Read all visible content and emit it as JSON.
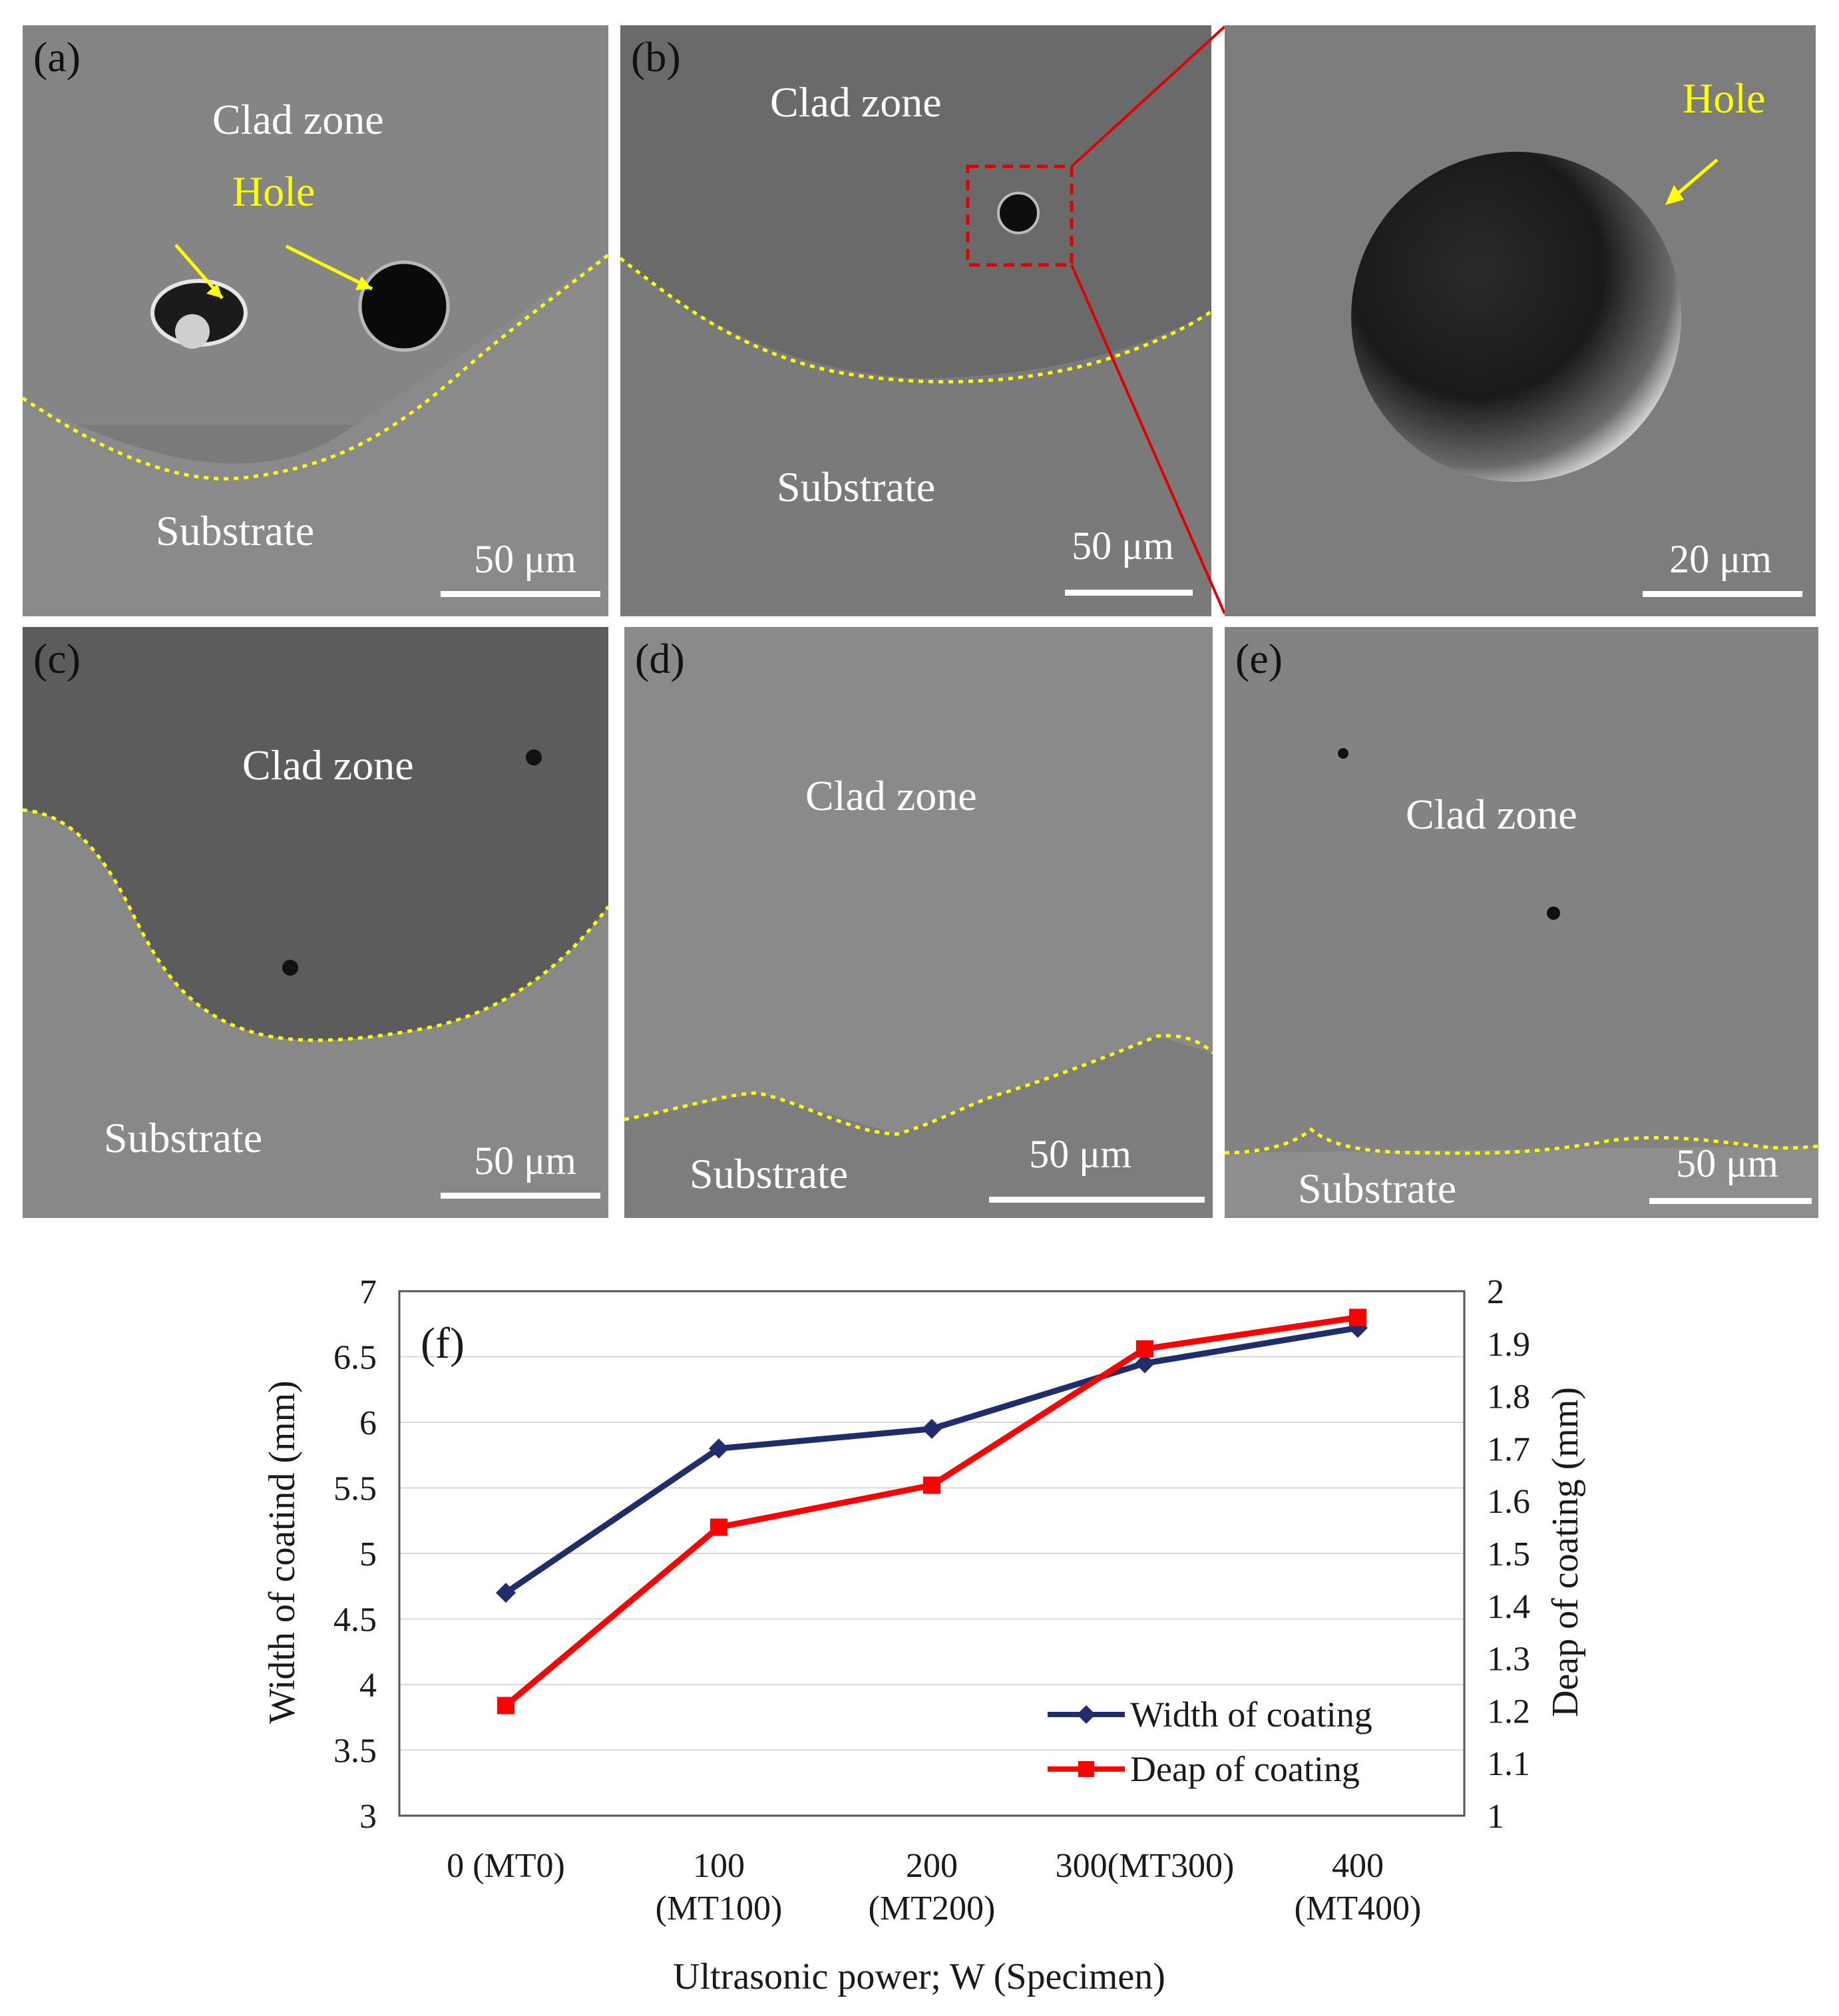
{
  "panels": {
    "a": {
      "label": "(a)",
      "clad": "Clad zone",
      "hole": "Hole",
      "substrate": "Substrate",
      "scale": "50 μm"
    },
    "b": {
      "label": "(b)",
      "clad": "Clad zone",
      "substrate": "Substrate",
      "scale": "50 μm"
    },
    "b_zoom": {
      "hole": "Hole",
      "scale": "20 μm"
    },
    "c": {
      "label": "(c)",
      "clad": "Clad zone",
      "substrate": "Substrate",
      "scale": "50 μm"
    },
    "d": {
      "label": "(d)",
      "clad": "Clad zone",
      "substrate": "Substrate",
      "scale": "50 μm"
    },
    "e": {
      "label": "(e)",
      "clad": "Clad zone",
      "substrate": "Substrate",
      "scale": "50 μm"
    }
  },
  "colors": {
    "boundary": "#ffff00",
    "hole_label": "#ffff00",
    "zoom_box": "#e00000",
    "width_series": "#1f2d6b",
    "depth_series": "#ff0000"
  },
  "chart_data": {
    "type": "line",
    "panel_label": "(f)",
    "xlabel": "Ultrasonic power; W (Specimen)",
    "categories": [
      {
        "line1": "0 (MT0)",
        "line2": ""
      },
      {
        "line1": "100",
        "line2": "(MT100)"
      },
      {
        "line1": "200",
        "line2": "(MT200)"
      },
      {
        "line1": "300(MT300)",
        "line2": ""
      },
      {
        "line1": "400",
        "line2": "(MT400)"
      }
    ],
    "y_left": {
      "label": "Width of coatind (mm)",
      "range": [
        3,
        7
      ],
      "ticks": [
        "3",
        "3.5",
        "4",
        "4.5",
        "5",
        "5.5",
        "6",
        "6.5",
        "7"
      ]
    },
    "y_right": {
      "label": "Deap of coating (mm)",
      "range": [
        1,
        2
      ],
      "ticks": [
        "1",
        "1.1",
        "1.2",
        "1.3",
        "1.4",
        "1.5",
        "1.6",
        "1.7",
        "1.8",
        "1.9",
        "2"
      ]
    },
    "series": [
      {
        "name": "Width of coating",
        "axis": "left",
        "marker": "diamond",
        "values": [
          4.7,
          5.8,
          5.95,
          6.45,
          6.72
        ]
      },
      {
        "name": "Deap of coating",
        "axis": "right",
        "marker": "square",
        "values": [
          1.21,
          1.55,
          1.63,
          1.89,
          1.95
        ]
      }
    ],
    "grid": true,
    "legend": "bottom-right"
  }
}
